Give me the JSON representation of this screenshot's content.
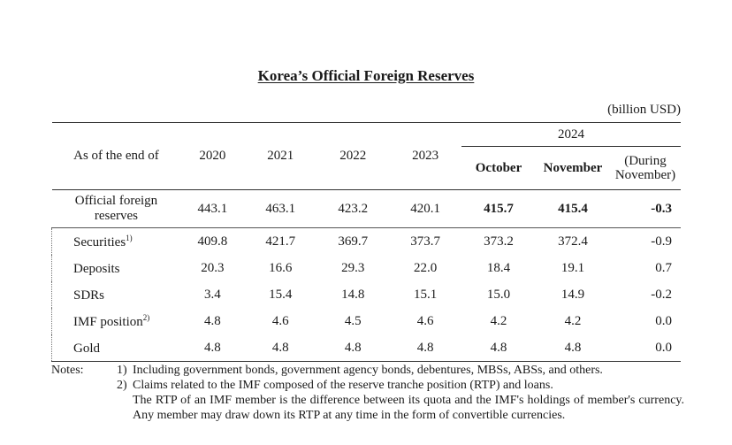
{
  "title": "Korea’s Official Foreign Reserves",
  "unit": "(billion USD)",
  "header": {
    "row_label": "As of the end of",
    "years": [
      "2020",
      "2021",
      "2022",
      "2023"
    ],
    "group_year": "2024",
    "october": "October",
    "november": "November",
    "during": "(During November)"
  },
  "rows": [
    {
      "label": "Official foreign reserves",
      "sup": "",
      "values": [
        "443.1",
        "463.1",
        "423.2",
        "420.1",
        "415.7",
        "415.4",
        "-0.3"
      ]
    },
    {
      "label": "Securities",
      "sup": "1)",
      "values": [
        "409.8",
        "421.7",
        "369.7",
        "373.7",
        "373.2",
        "372.4",
        "-0.9"
      ]
    },
    {
      "label": "Deposits",
      "sup": "",
      "values": [
        "20.3",
        "16.6",
        "29.3",
        "22.0",
        "18.4",
        "19.1",
        "0.7"
      ]
    },
    {
      "label": "SDRs",
      "sup": "",
      "values": [
        "3.4",
        "15.4",
        "14.8",
        "15.1",
        "15.0",
        "14.9",
        "-0.2"
      ]
    },
    {
      "label": "IMF position",
      "sup": "2)",
      "values": [
        "4.8",
        "4.6",
        "4.5",
        "4.6",
        "4.2",
        "4.2",
        "0.0"
      ]
    },
    {
      "label": "Gold",
      "sup": "",
      "values": [
        "4.8",
        "4.8",
        "4.8",
        "4.8",
        "4.8",
        "4.8",
        "0.0"
      ]
    }
  ],
  "notes": {
    "lead": "Notes:",
    "n1_num": "1)",
    "n1_text": "Including government bonds, government agency bonds, debentures, MBSs, ABSs, and others.",
    "n2_num": "2)",
    "n2_text": "Claims related to the IMF composed of the reserve tranche position (RTP) and loans.",
    "n2_cont": "The RTP of an IMF member is the difference between its quota and the IMF's holdings of member's currency. Any member may draw down its RTP at any time in the form of convertible currencies."
  }
}
